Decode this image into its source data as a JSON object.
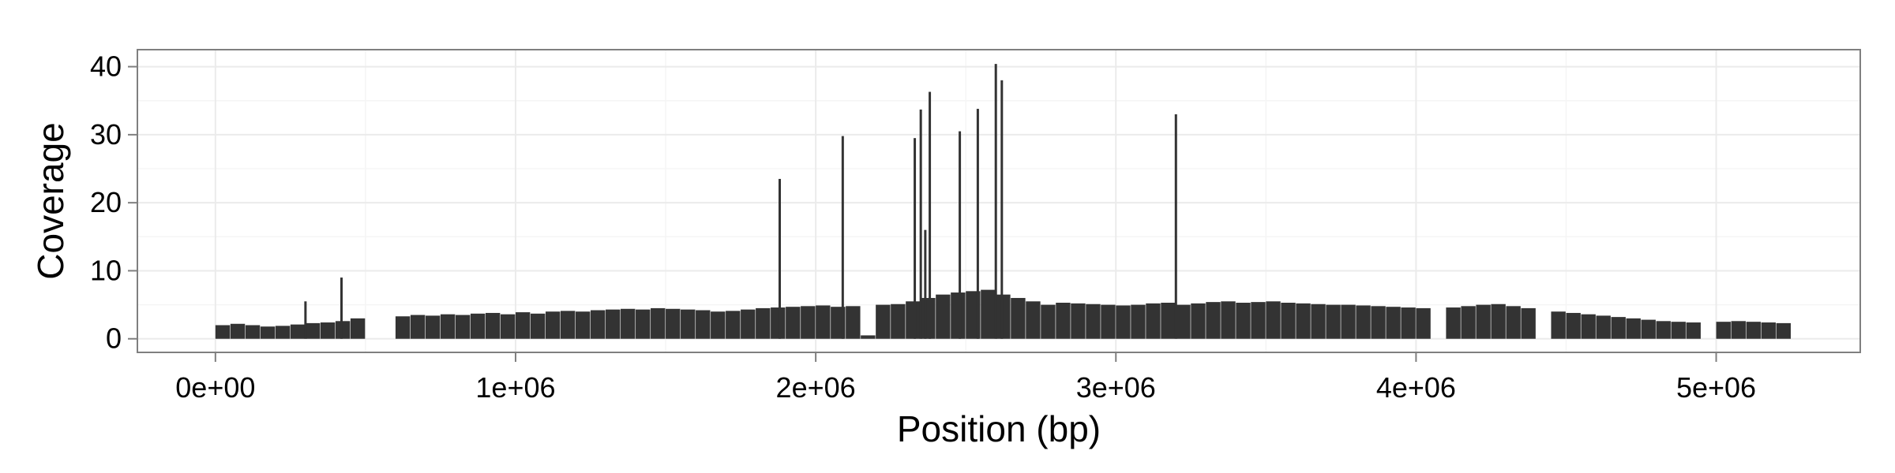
{
  "chart_data": {
    "type": "bar",
    "title": "",
    "xlabel": "Position (bp)",
    "ylabel": "Coverage",
    "xlim": [
      -260000,
      5480000
    ],
    "ylim": [
      -2,
      42.5
    ],
    "x_ticks": [
      {
        "value": 0,
        "label": "0e+00"
      },
      {
        "value": 1000000,
        "label": "1e+06"
      },
      {
        "value": 2000000,
        "label": "2e+06"
      },
      {
        "value": 3000000,
        "label": "3e+06"
      },
      {
        "value": 4000000,
        "label": "4e+06"
      },
      {
        "value": 5000000,
        "label": "5e+06"
      }
    ],
    "y_ticks": [
      {
        "value": 0,
        "label": "0"
      },
      {
        "value": 10,
        "label": "10"
      },
      {
        "value": 20,
        "label": "20"
      },
      {
        "value": 30,
        "label": "30"
      },
      {
        "value": 40,
        "label": "40"
      }
    ],
    "grid": true,
    "colors": {
      "bars": "#333333",
      "panel_border": "#7f7f7f",
      "grid_major": "#ebebeb",
      "grid_minor": "#f5f5f5"
    },
    "x": [
      0,
      50000,
      100000,
      150000,
      200000,
      250000,
      300000,
      350000,
      400000,
      450000,
      500000,
      550000,
      600000,
      650000,
      700000,
      750000,
      800000,
      850000,
      900000,
      950000,
      1000000,
      1050000,
      1100000,
      1150000,
      1200000,
      1250000,
      1300000,
      1350000,
      1400000,
      1450000,
      1500000,
      1550000,
      1600000,
      1650000,
      1700000,
      1750000,
      1800000,
      1850000,
      1900000,
      1950000,
      2000000,
      2050000,
      2100000,
      2150000,
      2200000,
      2250000,
      2300000,
      2350000,
      2400000,
      2450000,
      2500000,
      2550000,
      2600000,
      2650000,
      2700000,
      2750000,
      2800000,
      2850000,
      2900000,
      2950000,
      3000000,
      3050000,
      3100000,
      3150000,
      3200000,
      3250000,
      3300000,
      3350000,
      3400000,
      3450000,
      3500000,
      3550000,
      3600000,
      3650000,
      3700000,
      3750000,
      3800000,
      3850000,
      3900000,
      3950000,
      4000000,
      4050000,
      4100000,
      4150000,
      4200000,
      4250000,
      4300000,
      4350000,
      4400000,
      4450000,
      4500000,
      4550000,
      4600000,
      4650000,
      4700000,
      4750000,
      4800000,
      4850000,
      4900000,
      4950000,
      5000000,
      5050000,
      5100000,
      5150000,
      5200000
    ],
    "values": [
      2.0,
      2.2,
      2.0,
      1.8,
      1.9,
      2.1,
      2.3,
      2.4,
      2.6,
      3.0,
      0.0,
      0.0,
      3.3,
      3.5,
      3.4,
      3.6,
      3.5,
      3.7,
      3.8,
      3.6,
      3.9,
      3.7,
      4.0,
      4.1,
      4.0,
      4.2,
      4.3,
      4.4,
      4.3,
      4.5,
      4.4,
      4.3,
      4.2,
      4.0,
      4.1,
      4.3,
      4.5,
      4.6,
      4.7,
      4.8,
      4.9,
      4.7,
      4.8,
      0.5,
      5.0,
      5.1,
      5.5,
      6.0,
      6.5,
      6.8,
      7.0,
      7.2,
      6.5,
      6.0,
      5.5,
      5.0,
      5.3,
      5.2,
      5.1,
      5.0,
      4.9,
      5.0,
      5.2,
      5.3,
      5.0,
      5.2,
      5.4,
      5.5,
      5.3,
      5.4,
      5.5,
      5.3,
      5.2,
      5.1,
      5.0,
      5.0,
      4.9,
      4.8,
      4.7,
      4.6,
      4.5,
      0.0,
      4.6,
      4.8,
      5.0,
      5.1,
      4.8,
      4.5,
      0.0,
      4.0,
      3.8,
      3.6,
      3.4,
      3.2,
      3.0,
      2.8,
      2.6,
      2.5,
      2.4,
      0.0,
      2.5,
      2.6,
      2.5,
      2.4,
      2.3
    ],
    "peaks": [
      {
        "x": 300000,
        "value": 5.5
      },
      {
        "x": 420000,
        "value": 9.0
      },
      {
        "x": 1880000,
        "value": 23.5
      },
      {
        "x": 2090000,
        "value": 29.8
      },
      {
        "x": 2330000,
        "value": 29.5
      },
      {
        "x": 2350000,
        "value": 33.7
      },
      {
        "x": 2365000,
        "value": 16.0
      },
      {
        "x": 2380000,
        "value": 36.3
      },
      {
        "x": 2480000,
        "value": 30.5
      },
      {
        "x": 2540000,
        "value": 33.8
      },
      {
        "x": 2600000,
        "value": 40.4
      },
      {
        "x": 2620000,
        "value": 38.0
      },
      {
        "x": 3200000,
        "value": 33.0
      }
    ]
  }
}
